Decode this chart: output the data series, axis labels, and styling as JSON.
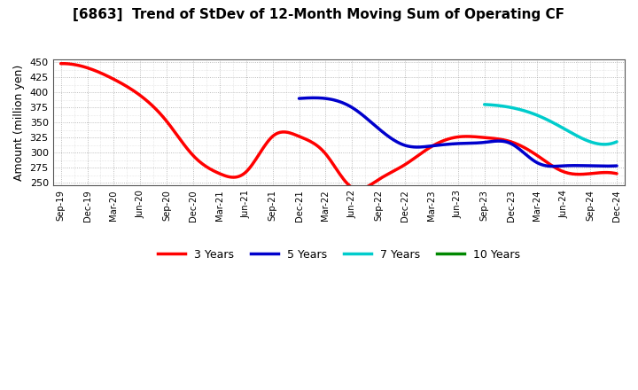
{
  "title": "[6863]  Trend of StDev of 12-Month Moving Sum of Operating CF",
  "ylabel": "Amount (million yen)",
  "ylim": [
    245,
    455
  ],
  "yticks": [
    250,
    275,
    300,
    325,
    350,
    375,
    400,
    425,
    450
  ],
  "background_color": "#ffffff",
  "grid_color": "#aaaaaa",
  "series": {
    "3 Years": {
      "color": "#ff0000",
      "x": [
        0,
        1,
        2,
        3,
        4,
        5,
        6,
        7,
        8,
        9,
        10,
        11,
        12,
        13,
        14,
        15,
        16,
        17,
        18,
        19,
        20,
        21
      ],
      "y": [
        448,
        441,
        422,
        395,
        352,
        295,
        265,
        268,
        327,
        327,
        298,
        242,
        255,
        280,
        310,
        326,
        325,
        318,
        295,
        268,
        265,
        265
      ]
    },
    "5 Years": {
      "color": "#0000cc",
      "x": [
        9,
        10,
        11,
        12,
        13,
        14,
        15,
        16,
        17,
        18,
        19,
        20,
        21
      ],
      "y": [
        390,
        390,
        375,
        340,
        312,
        311,
        315,
        317,
        315,
        283,
        278,
        278,
        278
      ]
    },
    "7 Years": {
      "color": "#00cccc",
      "x": [
        16,
        17,
        18,
        19,
        20,
        21
      ],
      "y": [
        380,
        375,
        362,
        340,
        318,
        318
      ]
    },
    "10 Years": {
      "color": "#008800",
      "x": [],
      "y": []
    }
  },
  "x_labels": [
    "Sep-19",
    "Dec-19",
    "Mar-20",
    "Jun-20",
    "Sep-20",
    "Dec-20",
    "Mar-21",
    "Jun-21",
    "Sep-21",
    "Dec-21",
    "Mar-22",
    "Jun-22",
    "Sep-22",
    "Dec-22",
    "Mar-23",
    "Jun-23",
    "Sep-23",
    "Dec-23",
    "Mar-24",
    "Jun-24",
    "Sep-24",
    "Dec-24"
  ],
  "linewidth": 2.5
}
